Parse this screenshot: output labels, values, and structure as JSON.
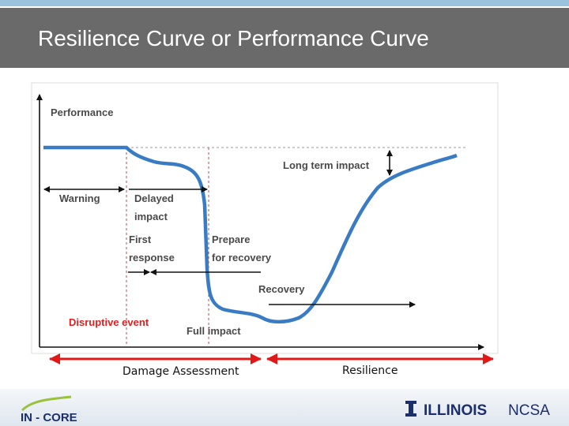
{
  "header": {
    "title": "Resilience Curve or Performance Curve"
  },
  "diagram": {
    "y_axis_label": "Performance",
    "labels": {
      "warning": "Warning",
      "delayed_1": "Delayed",
      "delayed_2": "impact",
      "first_1": "First",
      "first_2": "response",
      "prepare_1": "Prepare",
      "prepare_2": "for recovery",
      "long_term": "Long term impact",
      "recovery": "Recovery",
      "disruptive": "Disruptive event",
      "full_impact": "Full impact"
    }
  },
  "phases": {
    "damage": "Damage Assessment",
    "resilience": "Resilience"
  },
  "footer": {
    "left_logo": "IN - CORE",
    "right_logo_bold": "ILLINOIS",
    "right_logo_light": "NCSA"
  }
}
